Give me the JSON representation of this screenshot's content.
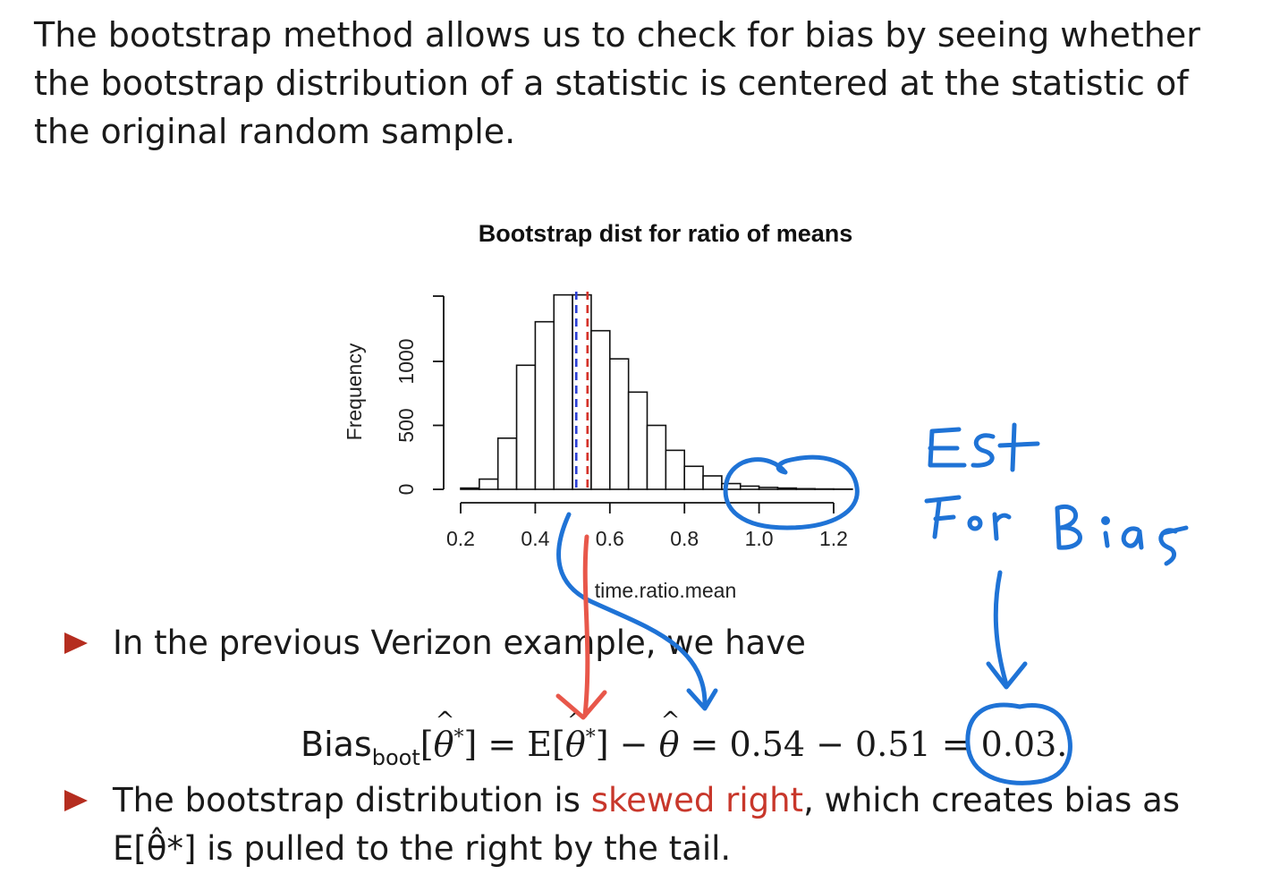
{
  "intro": {
    "text": "The bootstrap method allows us to check for bias by seeing whether the bootstrap distribution of a statistic is centered at the statistic of the original random sample."
  },
  "chart_data": {
    "type": "bar",
    "title": "Bootstrap dist for ratio of means",
    "xlabel": "time.ratio.mean",
    "ylabel": "Frequency",
    "xlim": [
      0.2,
      1.25
    ],
    "ylim": [
      0,
      1500
    ],
    "x_ticks": [
      "0.2",
      "0.4",
      "0.6",
      "0.8",
      "1.0",
      "1.2"
    ],
    "y_ticks": [
      "0",
      "500",
      "1000"
    ],
    "bin_width": 0.05,
    "bin_starts": [
      0.2,
      0.25,
      0.3,
      0.35,
      0.4,
      0.45,
      0.5,
      0.55,
      0.6,
      0.65,
      0.7,
      0.75,
      0.8,
      0.85,
      0.9,
      0.95,
      1.0,
      1.05,
      1.1,
      1.15,
      1.2
    ],
    "values": [
      10,
      80,
      400,
      970,
      1310,
      1520,
      1520,
      1240,
      1020,
      760,
      500,
      305,
      180,
      105,
      45,
      25,
      15,
      10,
      5,
      3,
      2
    ],
    "vlines": [
      {
        "x": 0.51,
        "color": "#2b3fd6",
        "style": "dashed"
      },
      {
        "x": 0.54,
        "color": "#d7332a",
        "style": "dashed"
      }
    ],
    "grid": false,
    "legend": "none"
  },
  "bullets": [
    {
      "text": "In the previous Verizon example, we have"
    },
    {
      "pre": "The bootstrap distribution is ",
      "highlight": "skewed right",
      "post": ", which creates bias as E[θ̂*] is pulled to the right by the tail."
    }
  ],
  "equation": {
    "bias": "Bias",
    "sub": "boot",
    "theta": "θ",
    "star": "*",
    "middle": "] = E[",
    "rest": "] − ",
    "values": " = 0.54 − 0.51 = 0.03."
  },
  "annotations": {
    "est_line1": "Est",
    "est_line2": "For Bias"
  },
  "colors": {
    "accent": "#b52d1f",
    "highlight": "#c8372b",
    "ink_blue": "#1f73d6",
    "ink_red": "#e8574a"
  }
}
